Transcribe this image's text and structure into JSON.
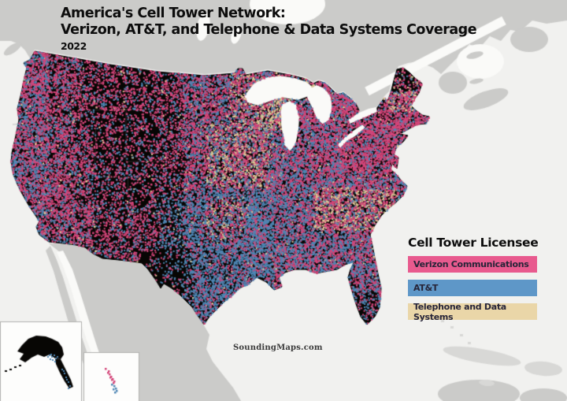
{
  "title": {
    "line1": "America's Cell Tower Network:",
    "line2": "Verizon, AT&T, and Telephone & Data Systems Coverage",
    "year": "2022"
  },
  "legend": {
    "title": "Cell Tower Licensee",
    "items": [
      {
        "label": "Verizon Communications",
        "swatch": "#e85a8e",
        "dot": "#d44579"
      },
      {
        "label": "AT&T",
        "swatch": "#5e97c8",
        "dot": "#4e86b4"
      },
      {
        "label": "Telephone and Data Systems",
        "swatch": "#ead6a8",
        "dot": "#dcc795"
      }
    ]
  },
  "attribution": "SoundingMaps.com",
  "map": {
    "colors": {
      "ocean": "#f1f1ef",
      "foreign_land": "#cbcbc9",
      "island_land": "#d8d8d6",
      "water_inland": "#fafaf8",
      "us_land": "#070604",
      "inset_bg": "#fdfdfc",
      "inset_border": "#b2b2b0"
    }
  }
}
